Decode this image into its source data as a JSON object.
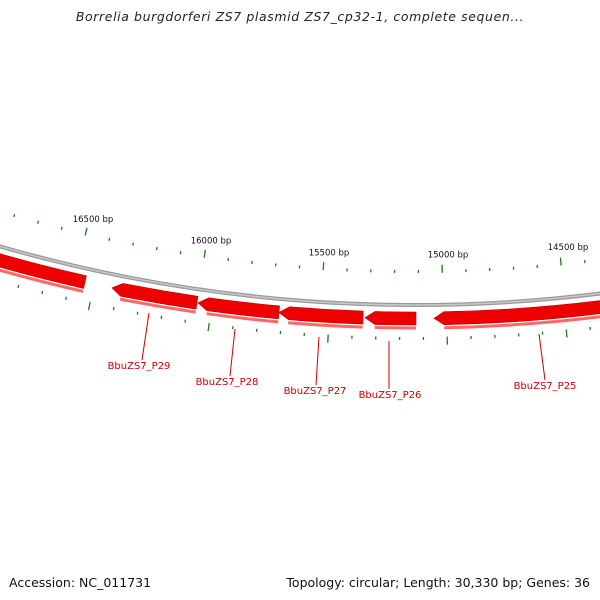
{
  "title": "Borrelia burgdorferi ZS7 plasmid ZS7_cp32-1, complete sequen...",
  "footer": {
    "accession": "Accession: NC_011731",
    "summary": "Topology: circular; Length: 30,330 bp; Genes: 36"
  },
  "colors": {
    "gene_fill": "#ee0000",
    "gene_highlight": "#ff6666",
    "gene_label": "#cc0000",
    "backbone": "#888888",
    "tick": "#1a7a1a"
  },
  "scale_labels": [
    "16500 bp",
    "16000 bp",
    "15500 bp",
    "15000 bp",
    "14500 bp"
  ],
  "genes": [
    {
      "label": "BbuZS7_P29"
    },
    {
      "label": "BbuZS7_P28"
    },
    {
      "label": "BbuZS7_P27"
    },
    {
      "label": "BbuZS7_P26"
    },
    {
      "label": "BbuZS7_P25"
    }
  ]
}
